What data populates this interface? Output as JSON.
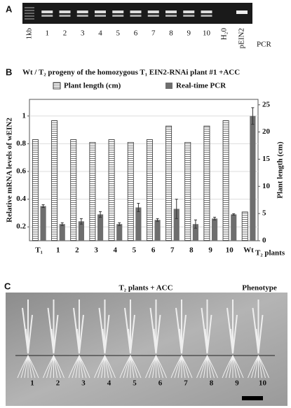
{
  "panel_a": {
    "label": "A",
    "lanes": [
      "1kb",
      "1",
      "2",
      "3",
      "4",
      "5",
      "6",
      "7",
      "8",
      "9",
      "10",
      "H₂0",
      "pEIN2"
    ],
    "method": "PCR"
  },
  "chart_data": {
    "panel_label": "B",
    "type": "bar",
    "title": "Wt / T₂ progeny of the homozygous T₁ EIN2-RNAi plant #1 +ACC",
    "y_label": "Relative mRNA levels of wEIN2",
    "y2_label": "Plant length (cm)",
    "x_label": "T₂ plants",
    "categories": [
      "T₁",
      "1",
      "2",
      "3",
      "4",
      "5",
      "6",
      "7",
      "8",
      "9",
      "10",
      "Wt"
    ],
    "series": [
      {
        "name": "Plant length (cm)",
        "color": "#ffffff",
        "axis": "y2",
        "values": [
          18.6,
          22.1,
          18.6,
          18.1,
          18.6,
          18.1,
          18.6,
          21.1,
          18.1,
          21.1,
          22.1,
          5.3
        ]
      },
      {
        "name": "Real-time PCR",
        "color": "#6e6e6e",
        "values": [
          0.35,
          0.22,
          0.24,
          0.29,
          0.22,
          0.34,
          0.25,
          0.33,
          0.22,
          0.26,
          0.29,
          1.0
        ],
        "errors": [
          0.01,
          0.01,
          0.02,
          0.02,
          0.01,
          0.03,
          0.01,
          0.07,
          0.03,
          0.01,
          0.005,
          0.06
        ]
      }
    ],
    "ylim": [
      0.1,
      1.12
    ],
    "yticks": [
      0.2,
      0.4,
      0.6,
      0.8,
      1
    ],
    "y2lim": [
      0,
      26
    ],
    "y2ticks": [
      0,
      5,
      10,
      15,
      20,
      25
    ],
    "grid": true
  },
  "panel_c": {
    "label": "C",
    "title": "T₂ plants + ACC",
    "caption": "Phenotype",
    "plants": [
      "1",
      "2",
      "3",
      "4",
      "5",
      "6",
      "7",
      "8",
      "9",
      "10"
    ]
  }
}
